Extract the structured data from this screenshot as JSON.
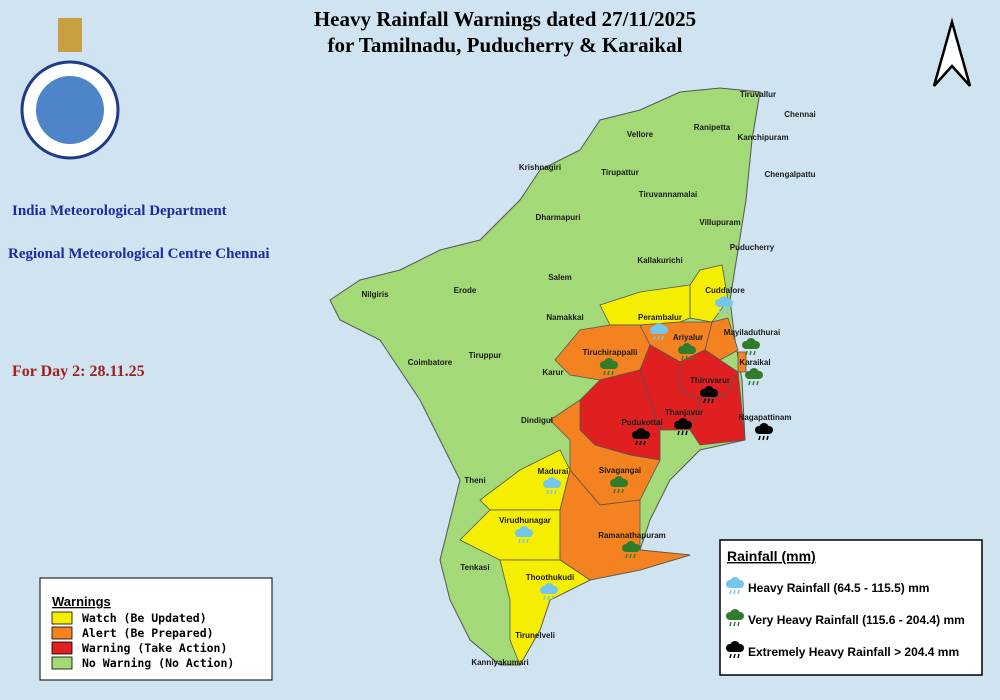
{
  "header": {
    "title": "Heavy Rainfall Warnings dated 27/11/2025",
    "subtitle": "for Tamilnadu, Puducherry & Karaikal"
  },
  "org": {
    "department": "India Meteorological Department",
    "centre": "Regional Meteorological Centre Chennai"
  },
  "day": "For Day 2: 28.11.25",
  "districts": [
    {
      "name": "Tiruvallur",
      "color": "#a3d977"
    },
    {
      "name": "Chennai",
      "color": "#a3d977"
    },
    {
      "name": "Vellore",
      "color": "#a3d977"
    },
    {
      "name": "Ranipetta",
      "color": "#a3d977"
    },
    {
      "name": "Kanchipuram",
      "color": "#a3d977"
    },
    {
      "name": "Chengalpattu",
      "color": "#a3d977"
    },
    {
      "name": "Krishnagiri",
      "color": "#a3d977"
    },
    {
      "name": "Tirupattur",
      "color": "#a3d977"
    },
    {
      "name": "Tiruvannamalai",
      "color": "#a3d977"
    },
    {
      "name": "Dharmapuri",
      "color": "#a3d977"
    },
    {
      "name": "Villupuram",
      "color": "#a3d977"
    },
    {
      "name": "Puducherry",
      "color": "#a3d977"
    },
    {
      "name": "Salem",
      "color": "#a3d977"
    },
    {
      "name": "Kallakurichi",
      "color": "#a3d977"
    },
    {
      "name": "Nilgiris",
      "color": "#a3d977"
    },
    {
      "name": "Erode",
      "color": "#a3d977"
    },
    {
      "name": "Cuddalore",
      "color": "#f6ee00",
      "icon": "#74c6ee"
    },
    {
      "name": "Namakkal",
      "color": "#a3d977"
    },
    {
      "name": "Perambalur",
      "color": "#f6ee00",
      "icon": "#74c6ee"
    },
    {
      "name": "Mayiladuthurai",
      "color": "#f58220",
      "icon": "#2f7d2a"
    },
    {
      "name": "Tiruchirappalli",
      "color": "#f58220",
      "icon": "#2f7d2a"
    },
    {
      "name": "Ariyalur",
      "color": "#f58220",
      "icon": "#2f7d2a"
    },
    {
      "name": "Karaikal",
      "color": "#f58220",
      "icon": "#2f7d2a"
    },
    {
      "name": "Tiruppur",
      "color": "#a3d977"
    },
    {
      "name": "Coimbatore",
      "color": "#a3d977"
    },
    {
      "name": "Karur",
      "color": "#a3d977"
    },
    {
      "name": "Thiruvarur",
      "color": "#e02020",
      "icon": "#000000"
    },
    {
      "name": "Dindigul",
      "color": "#a3d977"
    },
    {
      "name": "Pudukottai",
      "color": "#e02020",
      "icon": "#000000"
    },
    {
      "name": "Thanjavur",
      "color": "#e02020",
      "icon": "#000000"
    },
    {
      "name": "Nagapattinam",
      "color": "#e02020",
      "icon": "#000000"
    },
    {
      "name": "Madurai",
      "color": "#f6ee00",
      "icon": "#74c6ee"
    },
    {
      "name": "Sivagangai",
      "color": "#f58220",
      "icon": "#2f7d2a"
    },
    {
      "name": "Theni",
      "color": "#a3d977"
    },
    {
      "name": "Virudhunagar",
      "color": "#f6ee00",
      "icon": "#74c6ee"
    },
    {
      "name": "Ramanathapuram",
      "color": "#f58220",
      "icon": "#2f7d2a"
    },
    {
      "name": "Tenkasi",
      "color": "#a3d977"
    },
    {
      "name": "Thoothukudi",
      "color": "#f6ee00",
      "icon": "#74c6ee"
    },
    {
      "name": "Tirunelveli",
      "color": "#a3d977"
    },
    {
      "name": "Kanniyakumari",
      "color": "#a3d977"
    }
  ],
  "warnings_legend": {
    "title": "Warnings",
    "items": [
      {
        "label": "Watch (Be Updated)",
        "color": "#f6ee00"
      },
      {
        "label": "Alert (Be Prepared)",
        "color": "#f58220"
      },
      {
        "label": "Warning (Take Action)",
        "color": "#e02020"
      },
      {
        "label": "No Warning (No Action)",
        "color": "#a3d977"
      }
    ]
  },
  "rainfall_legend": {
    "title": "Rainfall (mm)",
    "items": [
      {
        "label": "Heavy Rainfall (64.5 - 115.5) mm",
        "color": "#74c6ee"
      },
      {
        "label": "Very Heavy Rainfall (115.6 - 204.4) mm",
        "color": "#2f7d2a"
      },
      {
        "label": "Extremely Heavy Rainfall > 204.4 mm",
        "color": "#000000"
      }
    ]
  }
}
